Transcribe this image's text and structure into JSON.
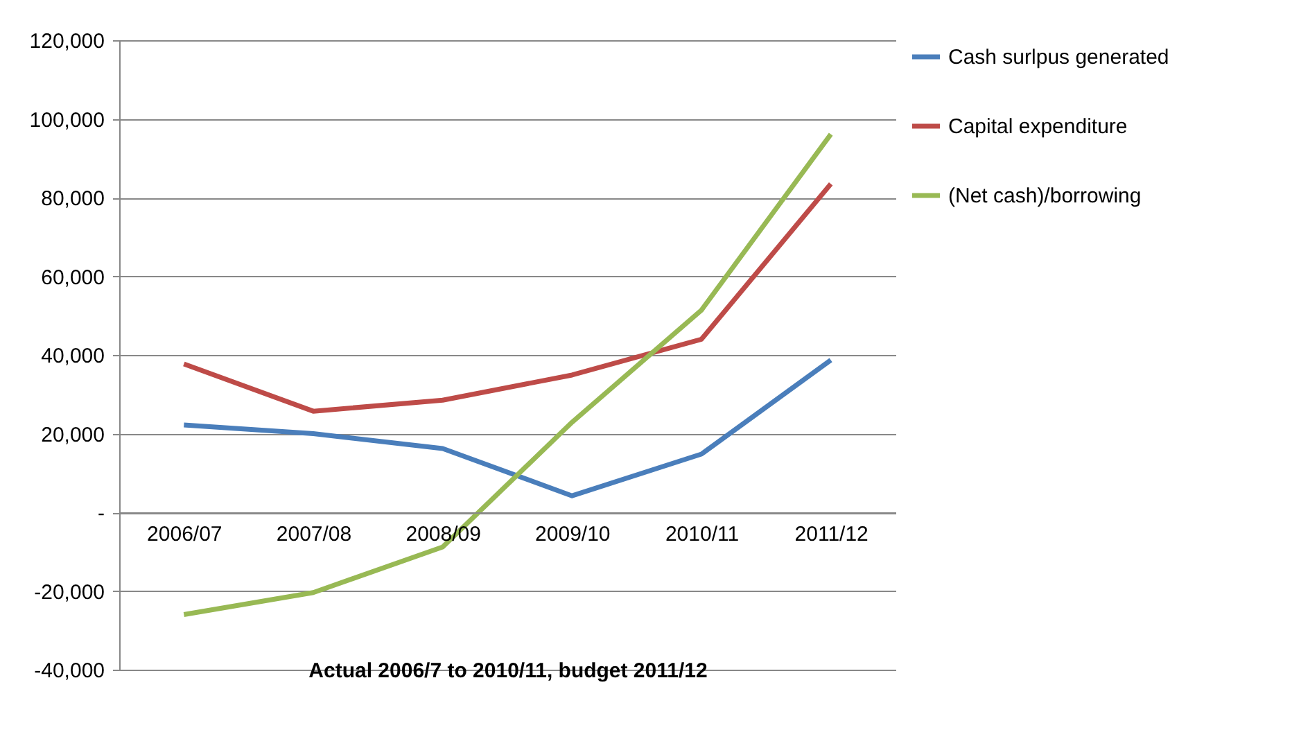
{
  "chart_data": {
    "type": "line",
    "xlabel": "Actual 2006/7 to 2010/11, budget 2011/12",
    "categories": [
      "2006/07",
      "2007/08",
      "2008/09",
      "2009/10",
      "2010/11",
      "2011/12"
    ],
    "series": [
      {
        "name": "Cash surlpus generated",
        "color": "#4a7ebb",
        "values": [
          22200,
          20000,
          16200,
          4200,
          14800,
          38700
        ]
      },
      {
        "name": "Capital expenditure",
        "color": "#be4b48",
        "values": [
          37700,
          25700,
          28500,
          34900,
          44000,
          83500
        ]
      },
      {
        "name": "(Net cash)/borrowing",
        "color": "#98b954",
        "values": [
          -26000,
          -20400,
          -8800,
          22900,
          51400,
          96100
        ]
      }
    ],
    "ylim": [
      -40000,
      120000
    ],
    "yticks": [
      {
        "value": -40000,
        "label": "-40,000"
      },
      {
        "value": -20000,
        "label": "-20,000"
      },
      {
        "value": 0,
        "label": "-"
      },
      {
        "value": 20000,
        "label": "20,000"
      },
      {
        "value": 40000,
        "label": "40,000"
      },
      {
        "value": 60000,
        "label": "60,000"
      },
      {
        "value": 80000,
        "label": "80,000"
      },
      {
        "value": 100000,
        "label": "100,000"
      },
      {
        "value": 120000,
        "label": "120,000"
      }
    ],
    "grid": "y",
    "legend": "right",
    "marker": "none",
    "line_style": "solid"
  }
}
